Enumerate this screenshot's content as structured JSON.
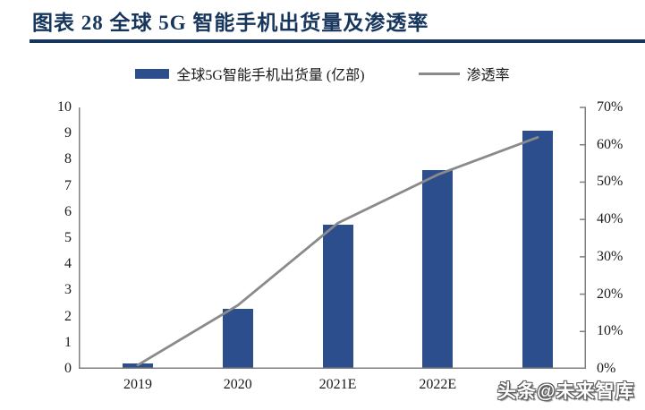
{
  "figure": {
    "title": "图表 28  全球 5G 智能手机出货量及渗透率",
    "accent_color": "#17365D"
  },
  "legend": {
    "bar_label": "全球5G智能手机出货量 (亿部)",
    "line_label": "渗透率"
  },
  "watermark": "头条@未来智库",
  "chart_data": {
    "type": "bar",
    "subtype": "bar+line combo",
    "title": "全球5G智能手机出货量及渗透率",
    "categories": [
      "2019",
      "2020",
      "2021E",
      "2022E",
      ""
    ],
    "series": [
      {
        "name": "全球5G智能手机出货量 (亿部)",
        "type": "bar",
        "axis": "left",
        "values": [
          0.2,
          2.3,
          5.5,
          7.6,
          9.1
        ],
        "color": "#2C4E8C"
      },
      {
        "name": "渗透率",
        "type": "line",
        "axis": "right",
        "values_pct": [
          1,
          17,
          39,
          52,
          62
        ],
        "color": "#8A8A8A"
      }
    ],
    "left_axis": {
      "min": 0,
      "max": 10,
      "step": 1,
      "ticks": [
        "0",
        "1",
        "2",
        "3",
        "4",
        "5",
        "6",
        "7",
        "8",
        "9",
        "10"
      ]
    },
    "right_axis": {
      "min": 0,
      "max": 70,
      "step": 10,
      "ticks": [
        "0%",
        "10%",
        "20%",
        "30%",
        "40%",
        "50%",
        "60%",
        "70%"
      ]
    },
    "grid": false,
    "legend_position": "top",
    "axis_color": "#808080"
  }
}
